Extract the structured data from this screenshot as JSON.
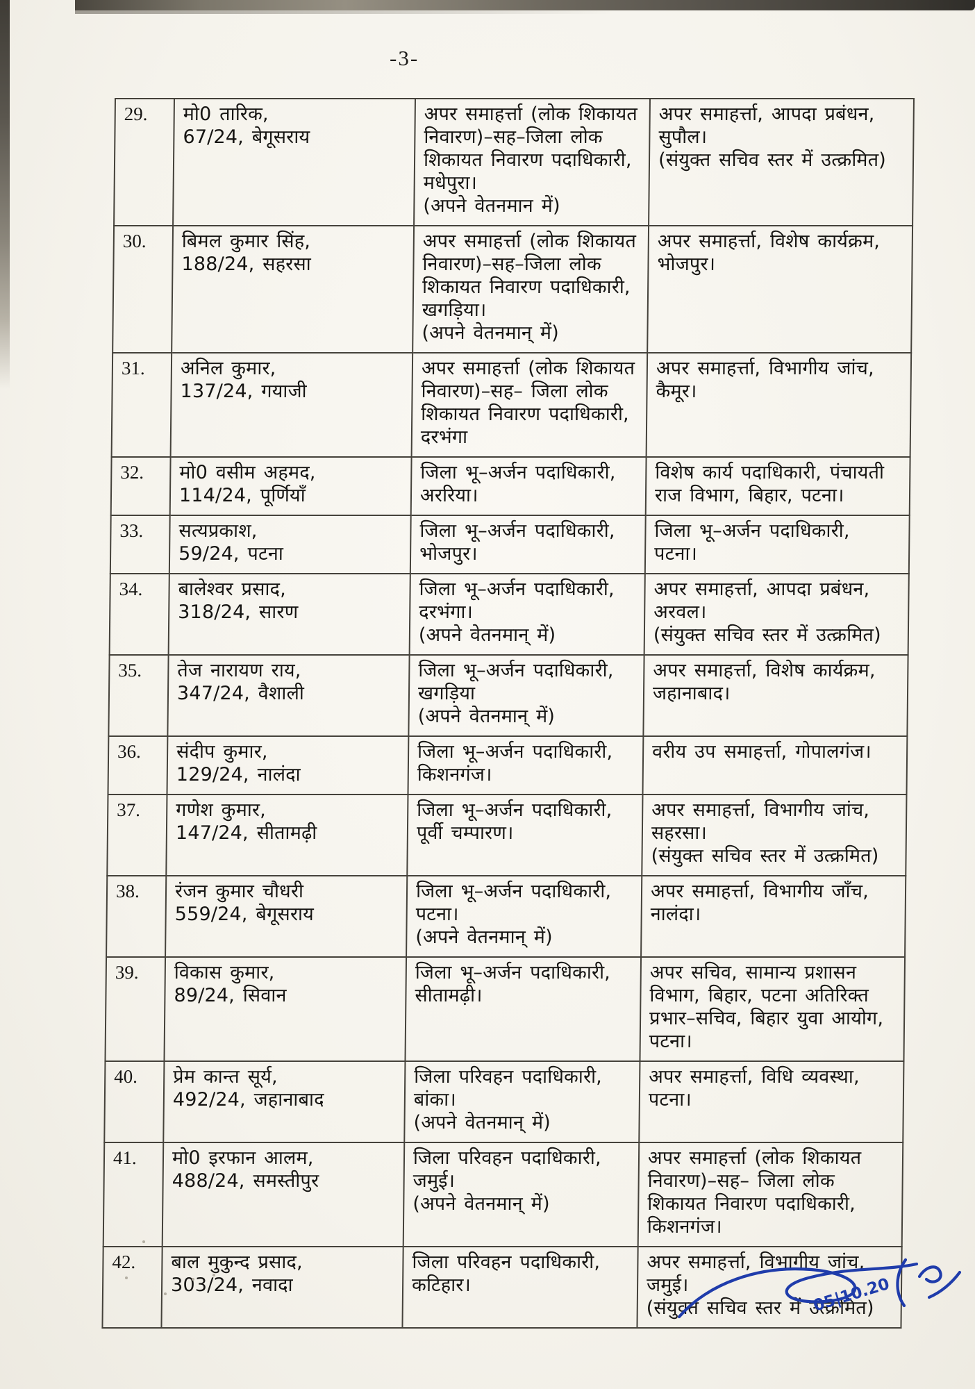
{
  "page": {
    "number_label": "-3-"
  },
  "table": {
    "rows": [
      {
        "sl": "29.",
        "name": [
          "मो0 तारिक,",
          "67/24, बेगूसराय"
        ],
        "from": [
          "अपर समाहर्त्ता (लोक शिकायत",
          "निवारण)–सह–जिला लोक",
          "शिकायत निवारण पदाधिकारी,",
          "मधेपुरा।",
          "(अपने वेतनमान में)"
        ],
        "to": [
          "अपर समाहर्त्ता, आपदा प्रबंधन,",
          "सुपौल।",
          "(संयुक्त सचिव स्तर में उत्क्रमित)"
        ]
      },
      {
        "sl": "30.",
        "name": [
          "बिमल कुमार सिंह,",
          "188/24, सहरसा"
        ],
        "from": [
          "अपर समाहर्त्ता (लोक शिकायत",
          "निवारण)–सह–जिला लोक",
          "शिकायत निवारण पदाधिकारी,",
          "खगड़िया।",
          "(अपने वेतनमान् में)"
        ],
        "to": [
          "अपर समाहर्त्ता, विशेष कार्यक्रम,",
          "भोजपुर।"
        ]
      },
      {
        "sl": "31.",
        "name": [
          "अनिल कुमार,",
          "137/24, गयाजी"
        ],
        "from": [
          "अपर समाहर्त्ता (लोक शिकायत",
          "निवारण)–सह– जिला लोक",
          "शिकायत निवारण पदाधिकारी,",
          "दरभंगा"
        ],
        "to": [
          "अपर समाहर्त्ता, विभागीय जांच,",
          "कैमूर।"
        ]
      },
      {
        "sl": "32.",
        "name": [
          "मो0 वसीम अहमद,",
          "114/24, पूर्णियाँ"
        ],
        "from": [
          "जिला भू–अर्जन पदाधिकारी,",
          "अररिया।"
        ],
        "to": [
          "विशेष कार्य पदाधिकारी, पंचायती",
          "राज विभाग, बिहार, पटना।"
        ]
      },
      {
        "sl": "33.",
        "name": [
          "सत्यप्रकाश,",
          "59/24, पटना"
        ],
        "from": [
          "जिला भू–अर्जन पदाधिकारी,",
          "भोजपुर।"
        ],
        "to": [
          "जिला भू–अर्जन पदाधिकारी,",
          "पटना।"
        ]
      },
      {
        "sl": "34.",
        "name": [
          "बालेश्वर प्रसाद,",
          "318/24, सारण"
        ],
        "from": [
          "जिला भू–अर्जन पदाधिकारी,",
          "दरभंगा।",
          "(अपने वेतनमान् में)"
        ],
        "to": [
          "अपर समाहर्त्ता, आपदा प्रबंधन,",
          "अरवल।",
          "(संयुक्त सचिव स्तर में उत्क्रमित)"
        ]
      },
      {
        "sl": "35.",
        "name": [
          "तेज नारायण राय,",
          "347/24, वैशाली"
        ],
        "from": [
          "जिला भू–अर्जन पदाधिकारी,",
          "खगड़िया",
          "(अपने वेतनमान् में)"
        ],
        "to": [
          "अपर समाहर्त्ता, विशेष कार्यक्रम,",
          "जहानाबाद।"
        ]
      },
      {
        "sl": "36.",
        "name": [
          "संदीप कुमार,",
          "129/24, नालंदा"
        ],
        "from": [
          "जिला भू–अर्जन पदाधिकारी,",
          "किशनगंज।"
        ],
        "to": [
          "वरीय उप समाहर्त्ता, गोपालगंज।"
        ]
      },
      {
        "sl": "37.",
        "name": [
          "गणेश कुमार,",
          "147/24, सीतामढ़ी"
        ],
        "from": [
          "जिला भू–अर्जन पदाधिकारी,",
          "पूर्वी चम्पारण।"
        ],
        "to": [
          "अपर समाहर्त्ता, विभागीय जांच,",
          "सहरसा।",
          "(संयुक्त सचिव स्तर में उत्क्रमित)"
        ]
      },
      {
        "sl": "38.",
        "name": [
          "रंजन कुमार चौधरी",
          "559/24, बेगूसराय"
        ],
        "from": [
          "जिला भू–अर्जन पदाधिकारी,",
          "पटना।",
          "(अपने वेतनमान् में)"
        ],
        "to": [
          "अपर समाहर्त्ता, विभागीय जाँच,",
          "नालंदा।"
        ]
      },
      {
        "sl": "39.",
        "name": [
          "विकास कुमार,",
          "89/24, सिवान"
        ],
        "from": [
          "जिला भू–अर्जन पदाधिकारी,",
          "सीतामढ़ी।"
        ],
        "to": [
          "अपर सचिव, सामान्य प्रशासन",
          "विभाग, बिहार, पटना अतिरिक्त",
          "प्रभार–सचिव, बिहार युवा आयोग,",
          "पटना।"
        ]
      },
      {
        "sl": "40.",
        "name": [
          "प्रेम कान्त सूर्य,",
          "492/24, जहानाबाद"
        ],
        "from": [
          "जिला परिवहन पदाधिकारी,",
          "बांका।",
          "(अपने वेतनमान् में)"
        ],
        "to": [
          "अपर समाहर्त्ता, विधि व्यवस्था,",
          "पटना।"
        ]
      },
      {
        "sl": "41.",
        "name": [
          "मो0 इरफान आलम,",
          "488/24, समस्तीपुर"
        ],
        "from": [
          "जिला परिवहन पदाधिकारी,",
          "जमुई।",
          "(अपने वेतनमान् में)"
        ],
        "to": [
          "अपर समाहर्त्ता (लोक शिकायत",
          "निवारण)–सह– जिला लोक",
          "शिकायत निवारण पदाधिकारी,",
          "किशनगंज।"
        ]
      },
      {
        "sl": "42.",
        "name": [
          "बाल मुकुन्द प्रसाद,",
          "303/24, नवादा"
        ],
        "from": [
          "जिला परिवहन पदाधिकारी,",
          "कटिहार।"
        ],
        "to": [
          "अपर समाहर्त्ता, विभागीय जांच,",
          "जमुई।",
          "(संयुक्त सचिव स्तर में उत्क्रमित)"
        ]
      }
    ]
  },
  "signature": {
    "date_text": "05|10.20",
    "ink_color": "#1f3cab"
  },
  "colors": {
    "paper": "#f5f3ec",
    "table_line": "#45423b",
    "text": "#161513"
  }
}
